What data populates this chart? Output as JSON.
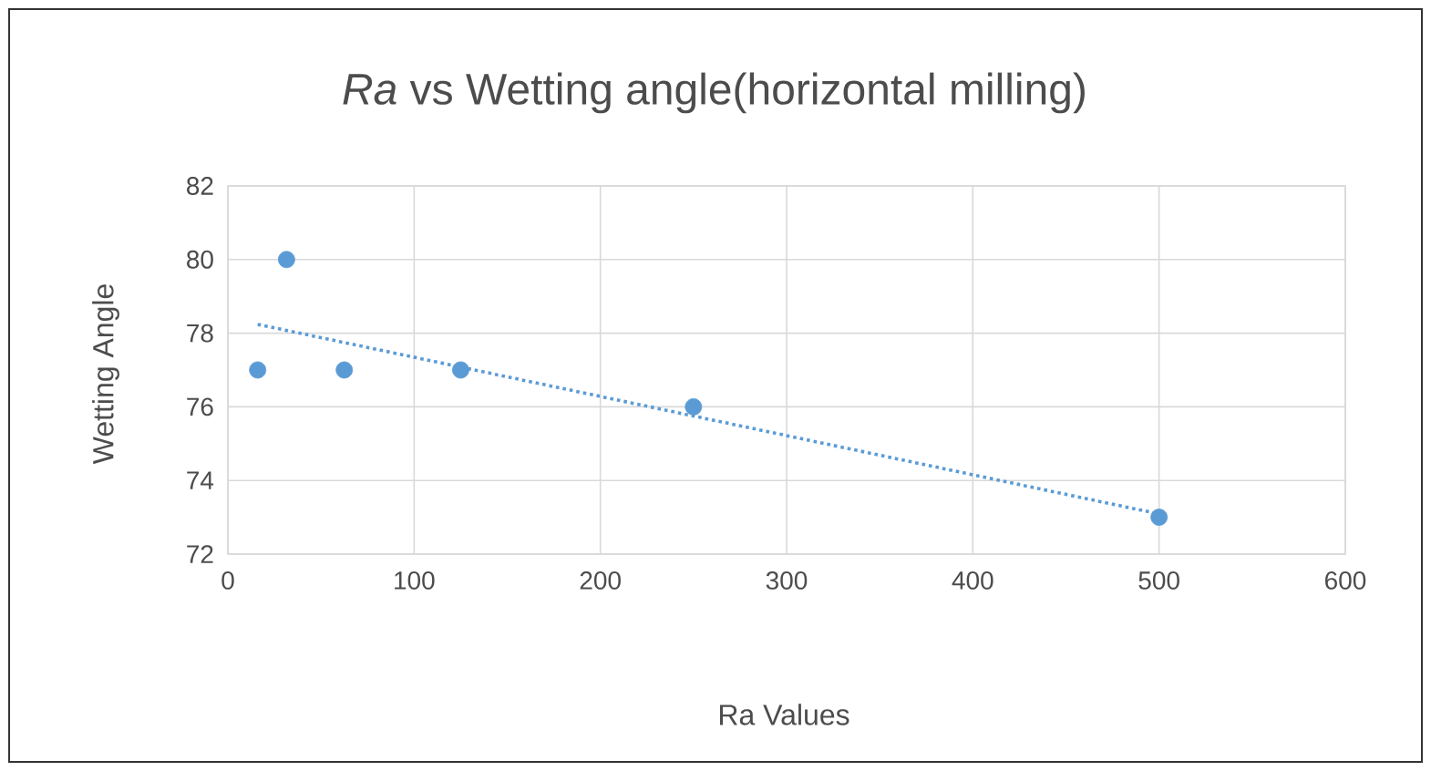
{
  "chart_data": {
    "type": "scatter",
    "title": "*Ra* vs Wetting angle(horizontal milling)",
    "xlabel": "Ra Values",
    "ylabel": "Wetting Angle",
    "xlim": [
      0,
      600
    ],
    "xticks": [
      0,
      100,
      200,
      300,
      400,
      500,
      600
    ],
    "ylim": [
      72,
      82
    ],
    "yticks": [
      72,
      74,
      76,
      78,
      80,
      82
    ],
    "grid": true,
    "series": [
      {
        "color": "#5b9bd5",
        "marker": "circle",
        "x": [
          16,
          31.5,
          62.5,
          125,
          250,
          500
        ],
        "values": [
          77,
          80,
          77,
          77,
          76,
          73
        ]
      },
      {
        "type": "line",
        "color": "#5b9bd5",
        "marker": "none",
        "line_style": "dotted",
        "x": [
          16,
          500
        ],
        "values": [
          78.24,
          73.09
        ]
      }
    ]
  }
}
